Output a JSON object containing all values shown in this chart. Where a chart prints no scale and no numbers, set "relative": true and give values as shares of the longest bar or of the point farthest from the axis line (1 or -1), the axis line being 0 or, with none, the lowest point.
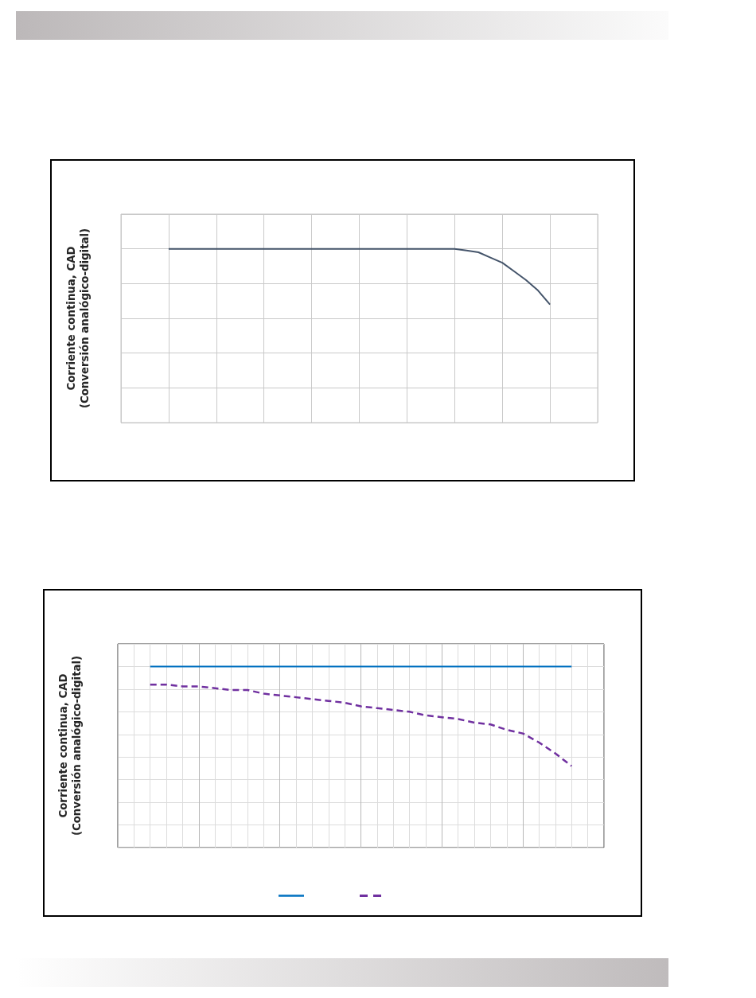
{
  "chart_data": [
    {
      "type": "line",
      "ylabel": "Corriente continua, CAD\n(Conversión analógico-digital)",
      "relative": true,
      "categories": [
        null,
        null,
        null,
        null,
        null,
        null,
        null,
        null,
        null,
        null,
        null,
        null,
        null,
        null,
        null,
        null,
        null,
        null,
        null,
        null,
        null,
        null,
        null,
        null,
        null,
        null,
        null,
        null,
        null,
        null,
        null,
        null,
        null,
        null,
        null,
        null,
        null,
        null,
        null,
        null,
        null
      ],
      "series": [
        {
          "color": "#44546a",
          "values": [
            null,
            null,
            null,
            null,
            1,
            1,
            1,
            1,
            1,
            1,
            1,
            1,
            1,
            1,
            1,
            1,
            1,
            1,
            1,
            1,
            1,
            1,
            1,
            1,
            1,
            1,
            1,
            1,
            1,
            0.99,
            0.98,
            0.95,
            0.92,
            0.87,
            0.82,
            0.76,
            0.68,
            null,
            null,
            null,
            null
          ]
        }
      ],
      "line_style": "solid",
      "grid": true
    },
    {
      "type": "line",
      "ylabel": "Corriente continua, CAD\n(Conversión analógico-digital)",
      "relative": true,
      "categories": [
        null,
        null,
        null,
        null,
        null,
        null,
        null,
        null,
        null,
        null,
        null,
        null,
        null,
        null,
        null,
        null,
        null,
        null,
        null,
        null,
        null,
        null,
        null,
        null,
        null,
        null,
        null,
        null,
        null,
        null,
        null
      ],
      "series": [
        {
          "color": "#0070c0",
          "line_style": "solid",
          "values": [
            null,
            null,
            1,
            1,
            1,
            1,
            1,
            1,
            1,
            1,
            1,
            1,
            1,
            1,
            1,
            1,
            1,
            1,
            1,
            1,
            1,
            1,
            1,
            1,
            1,
            1,
            1,
            1,
            1,
            null,
            null
          ]
        },
        {
          "color": "#7030a0",
          "line_style": "dashed",
          "values": [
            null,
            null,
            0.9,
            0.9,
            0.89,
            0.89,
            0.88,
            0.87,
            0.87,
            0.85,
            0.84,
            0.83,
            0.82,
            0.81,
            0.8,
            0.78,
            0.77,
            0.76,
            0.75,
            0.73,
            0.72,
            0.71,
            0.69,
            0.68,
            0.65,
            0.63,
            0.58,
            0.52,
            0.45,
            null,
            null
          ]
        }
      ],
      "grid": true
    }
  ]
}
